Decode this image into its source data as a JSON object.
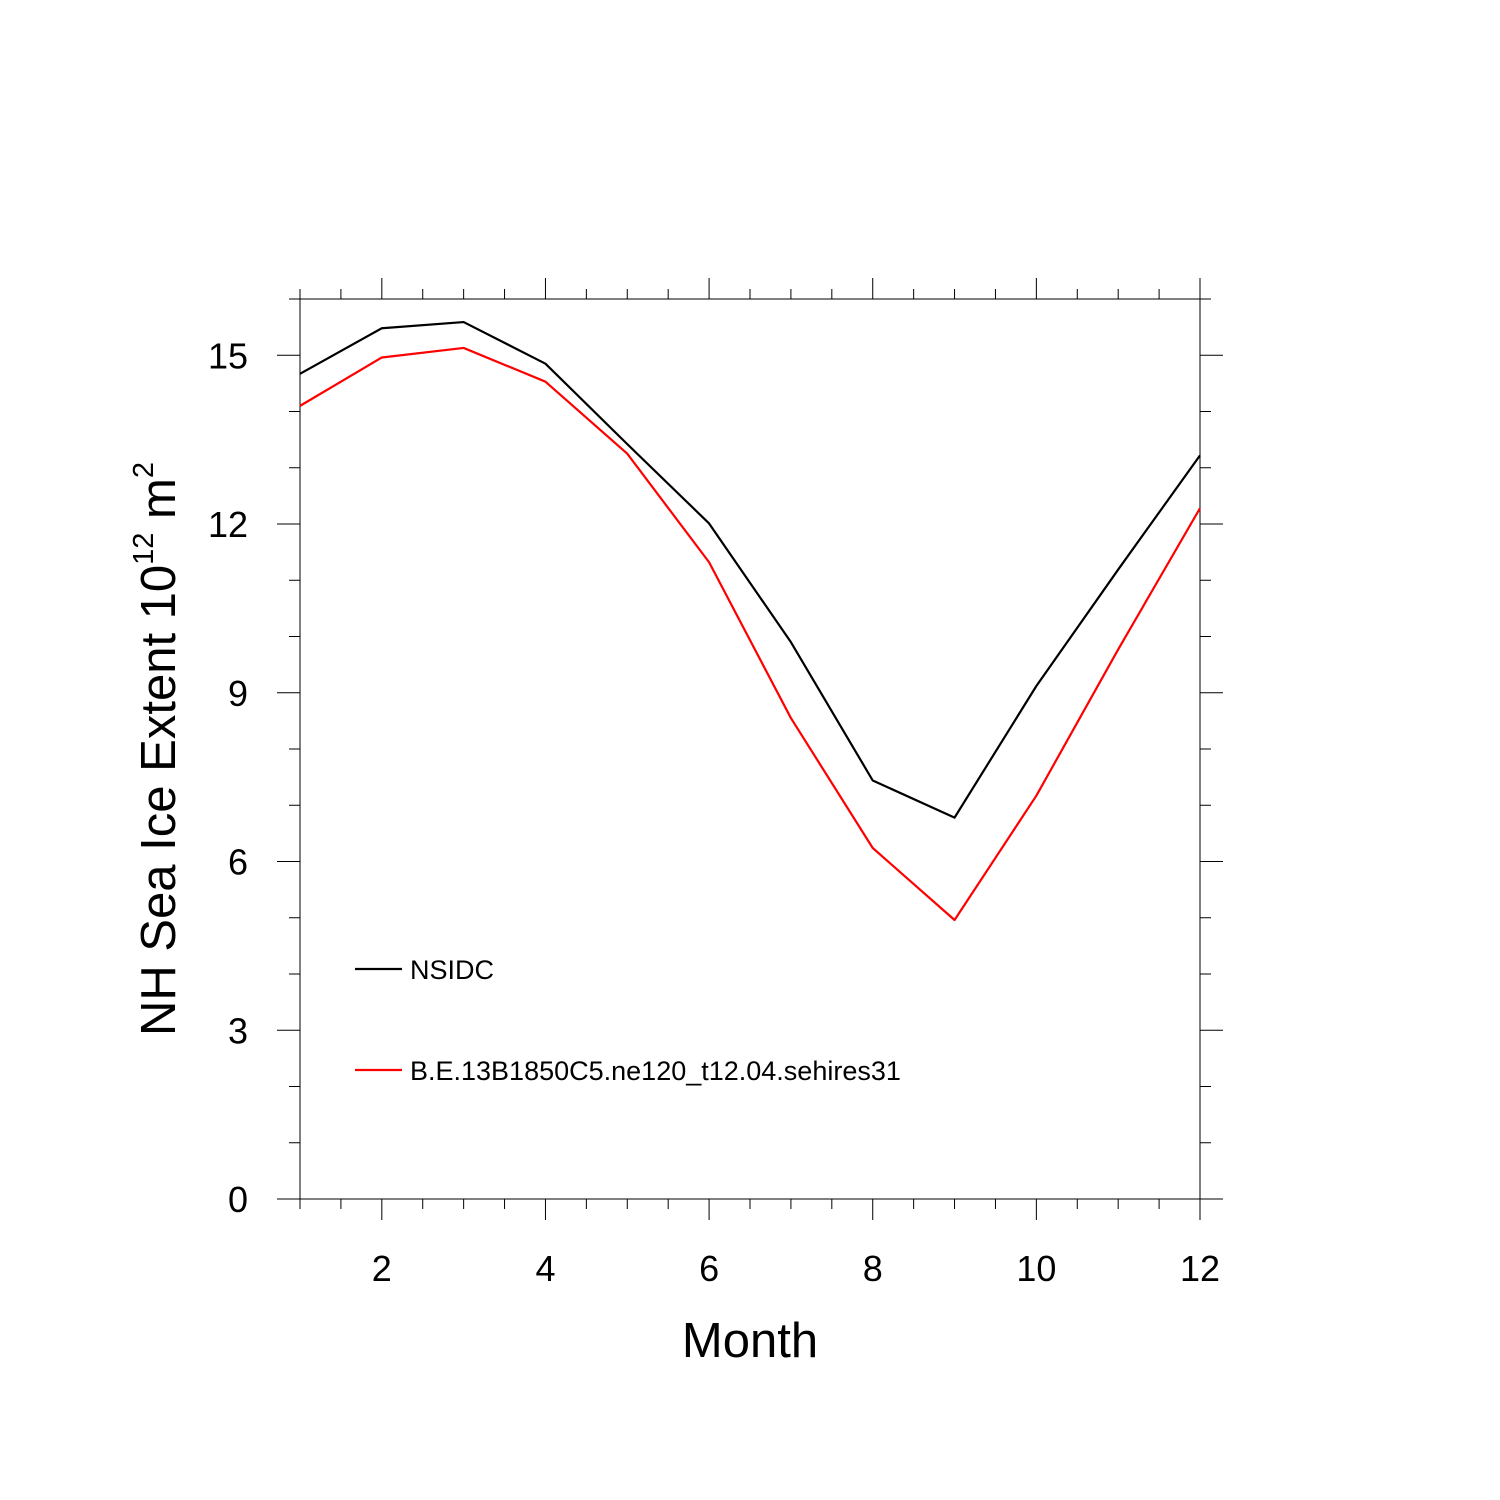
{
  "chart_data": {
    "type": "line",
    "xlabel": "Month",
    "ylabel": {
      "base": "NH Sea Ice Extent 10",
      "exp1": "12",
      "unit": " m",
      "exp2": "2"
    },
    "xlim": [
      1,
      12
    ],
    "ylim": [
      0,
      16
    ],
    "x_ticks": [
      2,
      4,
      6,
      8,
      10,
      12
    ],
    "x_tick_labels": [
      "2",
      "4",
      "6",
      "8",
      "10",
      "12"
    ],
    "x_minor_step": 0.5,
    "y_ticks": [
      0,
      3,
      6,
      9,
      12,
      15
    ],
    "y_tick_labels": [
      "0",
      "3",
      "6",
      "9",
      "12",
      "15"
    ],
    "y_minor_step": 1,
    "grid": false,
    "legend_position": "bottom-left inside",
    "x": [
      1,
      2,
      3,
      4,
      5,
      6,
      7,
      8,
      9,
      10,
      11,
      12
    ],
    "series": [
      {
        "name": "NSIDC",
        "color": "#000000",
        "values": [
          14.67,
          15.48,
          15.59,
          14.85,
          13.42,
          12.01,
          9.9,
          7.44,
          6.78,
          9.12,
          11.19,
          13.22
        ]
      },
      {
        "name": "B.E.13B1850C5.ne120_t12.04.sehires31",
        "color": "#ff0000",
        "values": [
          14.1,
          14.96,
          15.13,
          14.53,
          13.25,
          11.32,
          8.55,
          6.24,
          4.96,
          7.17,
          9.77,
          12.28
        ]
      }
    ]
  }
}
